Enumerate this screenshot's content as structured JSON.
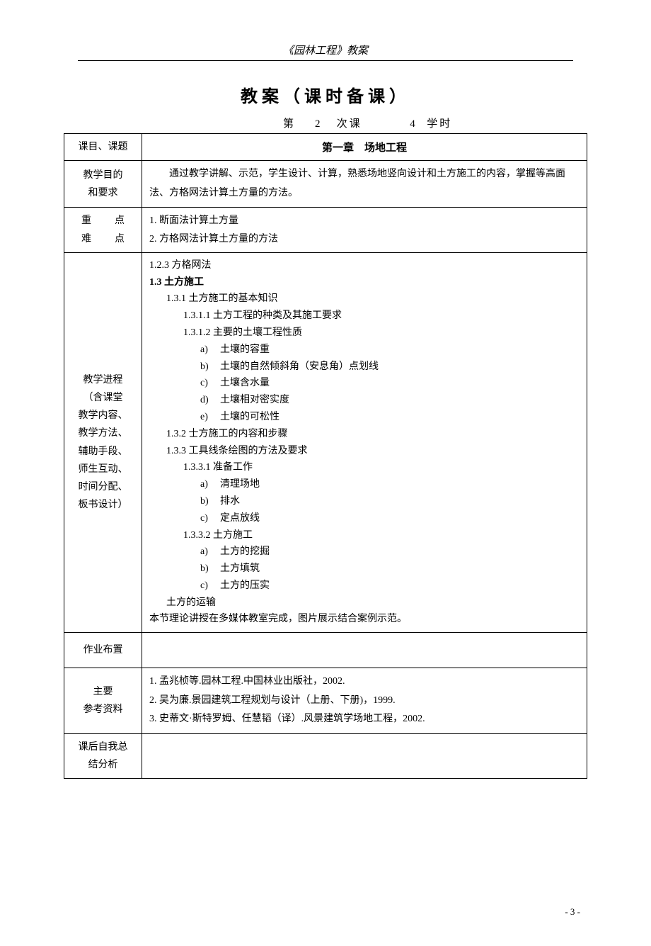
{
  "header": {
    "doc_title": "《园林工程》教案"
  },
  "title": "教案（课时备课）",
  "session": {
    "prefix": "第",
    "number": "2",
    "middle": "次课",
    "hours": "4",
    "hours_label": "学时"
  },
  "rows": {
    "course_label": "课目、课题",
    "chapter": "第一章　场地工程",
    "objective_label_1": "教学目的",
    "objective_label_2": "和要求",
    "objective_text": "通过教学讲解、示范，学生设计、计算，熟悉场地竖向设计和土方施工的内容，掌握等高面法、方格网法计算土方量的方法。",
    "key_label_1": "重",
    "key_label_2": "点",
    "diff_label_1": "难",
    "diff_label_2": "点",
    "key_point_1": "1.  断面法计算土方量",
    "key_point_2": "2.  方格网法计算土方量的方法",
    "progress_label_1": "教学进程",
    "progress_label_2": "（含课堂",
    "progress_label_3": "教学内容、",
    "progress_label_4": "教学方法、",
    "progress_label_5": "辅助手段、",
    "progress_label_6": "师生互动、",
    "progress_label_7": "时间分配、",
    "progress_label_8": "板书设计）",
    "outline": {
      "l1": "1.2.3 方格网法",
      "l2": "1.3 土方施工",
      "l3": "1.3.1 土方施工的基本知识",
      "l4": "1.3.1.1 土方工程的种类及其施工要求",
      "l5": "1.3.1.2 主要的土壤工程性质",
      "l6a": "土壤的容重",
      "l6b": "土壤的自然倾斜角（安息角）点划线",
      "l6c": "土壤含水量",
      "l6d": "土壤相对密实度",
      "l6e": "土壤的可松性",
      "l7": "1.3.2 士方施工的内容和步骤",
      "l8": "1.3.3 工具线条绘图的方法及要求",
      "l9": "1.3.3.1 准备工作",
      "l10a": "清理场地",
      "l10b": "排水",
      "l10c": "定点放线",
      "l11": "1.3.3.2 土方施工",
      "l12a": "土方的挖掘",
      "l12b": "土方填筑",
      "l12c": "土方的压实",
      "l13": "土方的运输",
      "l14": "本节理论讲授在多媒体教室完成，图片展示结合案例示范。"
    },
    "homework_label": "作业布置",
    "refs_label_1": "主要",
    "refs_label_2": "参考资料",
    "ref_1": "1.  孟兆桢等.园林工程.中国林业出版社，2002.",
    "ref_2": "2.  吴为廉.景园建筑工程规划与设计（上册、下册)，1999.",
    "ref_3": "3.  史蒂文·斯特罗姆、任慧韬（译）.风景建筑学场地工程，2002.",
    "summary_label_1": "课后自我总",
    "summary_label_2": "结分析"
  },
  "markers": {
    "a": "a)",
    "b": "b)",
    "c": "c)",
    "d": "d)",
    "e": "e)"
  },
  "page_number": "- 3 -"
}
